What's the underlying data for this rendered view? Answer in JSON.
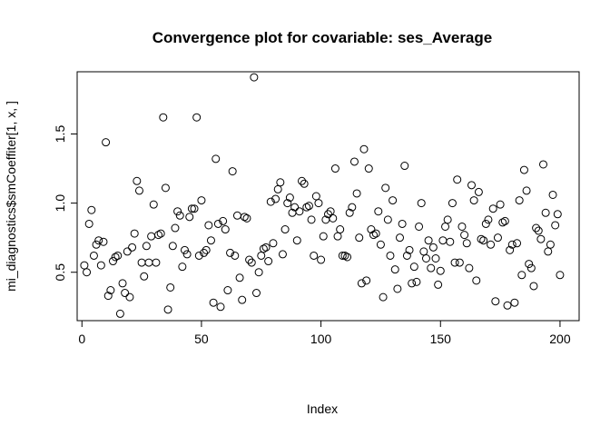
{
  "chart_data": {
    "type": "scatter",
    "title": "Convergence plot for covariable:   ses_Average",
    "xlabel": "Index",
    "ylabel": "mi_diagnostics$smCoeffiter[1, x, ]",
    "xlim": [
      -2,
      208
    ],
    "ylim": [
      0.15,
      1.95
    ],
    "xticks": [
      0,
      50,
      100,
      150,
      200
    ],
    "xtick_labels": [
      "0",
      "50",
      "100",
      "150",
      "200"
    ],
    "yticks": [
      0.5,
      1.0,
      1.5
    ],
    "ytick_labels": [
      "0.5",
      "1.0",
      "1.5"
    ],
    "grid": false,
    "legend": "none",
    "series": [
      {
        "marker": "open-circle",
        "color": "#000000",
        "x": [
          1,
          2,
          3,
          4,
          5,
          6,
          7,
          8,
          9,
          10,
          11,
          12,
          13,
          14,
          15,
          16,
          17,
          18,
          19,
          20,
          21,
          22,
          23,
          24,
          25,
          26,
          27,
          28,
          29,
          30,
          31,
          32,
          33,
          34,
          35,
          36,
          37,
          38,
          39,
          40,
          41,
          42,
          43,
          44,
          45,
          46,
          47,
          48,
          49,
          50,
          51,
          52,
          53,
          54,
          55,
          56,
          57,
          58,
          59,
          60,
          61,
          62,
          63,
          64,
          65,
          66,
          67,
          68,
          69,
          70,
          71,
          72,
          73,
          74,
          75,
          76,
          77,
          78,
          79,
          80,
          81,
          82,
          83,
          84,
          85,
          86,
          87,
          88,
          89,
          90,
          91,
          92,
          93,
          94,
          95,
          96,
          97,
          98,
          99,
          100,
          101,
          102,
          103,
          104,
          105,
          106,
          107,
          108,
          109,
          110,
          111,
          112,
          113,
          114,
          115,
          116,
          117,
          118,
          119,
          120,
          121,
          122,
          123,
          124,
          125,
          126,
          127,
          128,
          129,
          130,
          131,
          132,
          133,
          134,
          135,
          136,
          137,
          138,
          139,
          140,
          141,
          142,
          143,
          144,
          145,
          146,
          147,
          148,
          149,
          150,
          151,
          152,
          153,
          154,
          155,
          156,
          157,
          158,
          159,
          160,
          161,
          162,
          163,
          164,
          165,
          166,
          167,
          168,
          169,
          170,
          171,
          172,
          173,
          174,
          175,
          176,
          177,
          178,
          179,
          180,
          181,
          182,
          183,
          184,
          185,
          186,
          187,
          188,
          189,
          190,
          191,
          192,
          193,
          194,
          195,
          196,
          197,
          198,
          199,
          200
        ],
        "y": [
          0.55,
          0.5,
          0.85,
          0.95,
          0.62,
          0.7,
          0.73,
          0.55,
          0.72,
          1.44,
          0.33,
          0.37,
          0.58,
          0.61,
          0.62,
          0.2,
          0.42,
          0.35,
          0.65,
          0.32,
          0.68,
          0.78,
          1.16,
          1.09,
          0.57,
          0.47,
          0.69,
          0.57,
          0.76,
          0.99,
          0.57,
          0.77,
          0.78,
          1.62,
          1.11,
          0.23,
          0.39,
          0.69,
          0.82,
          0.94,
          0.91,
          0.54,
          0.66,
          0.63,
          0.9,
          0.96,
          0.96,
          1.62,
          0.62,
          1.02,
          0.64,
          0.66,
          0.84,
          0.73,
          0.28,
          1.32,
          0.85,
          0.25,
          0.87,
          0.81,
          0.37,
          0.64,
          1.23,
          0.62,
          0.91,
          0.46,
          0.3,
          0.9,
          0.89,
          0.59,
          0.57,
          1.91,
          0.35,
          0.5,
          0.62,
          0.67,
          0.68,
          0.58,
          1.01,
          0.71,
          1.03,
          1.1,
          1.15,
          0.63,
          0.81,
          1.0,
          1.04,
          0.93,
          0.97,
          0.73,
          0.94,
          1.16,
          1.14,
          0.97,
          0.98,
          0.88,
          0.62,
          1.05,
          1.0,
          0.59,
          0.76,
          0.88,
          0.92,
          0.94,
          0.89,
          1.25,
          0.76,
          0.81,
          0.62,
          0.62,
          0.61,
          0.93,
          0.97,
          1.3,
          1.07,
          0.75,
          0.42,
          1.39,
          0.44,
          1.25,
          0.81,
          0.77,
          0.78,
          0.94,
          0.7,
          0.32,
          1.11,
          0.88,
          0.62,
          1.02,
          0.52,
          0.38,
          0.75,
          0.85,
          1.27,
          0.62,
          0.66,
          0.42,
          0.54,
          0.43,
          0.83,
          1.0,
          0.65,
          0.6,
          0.73,
          0.53,
          0.68,
          0.6,
          0.41,
          0.51,
          0.73,
          0.83,
          0.88,
          0.72,
          1.0,
          0.57,
          1.17,
          0.57,
          0.83,
          0.77,
          0.71,
          0.53,
          1.13,
          1.02,
          0.44,
          1.08,
          0.74,
          0.73,
          0.85,
          0.88,
          0.7,
          0.96,
          0.29,
          0.75,
          0.99,
          0.86,
          0.87,
          0.26,
          0.66,
          0.7,
          0.28,
          0.71,
          1.02,
          0.48,
          1.24,
          1.09,
          0.56,
          0.53,
          0.4,
          0.82,
          0.8,
          0.74,
          1.28,
          0.93,
          0.65,
          0.7,
          1.06,
          0.84,
          0.92,
          0.48
        ]
      }
    ]
  }
}
